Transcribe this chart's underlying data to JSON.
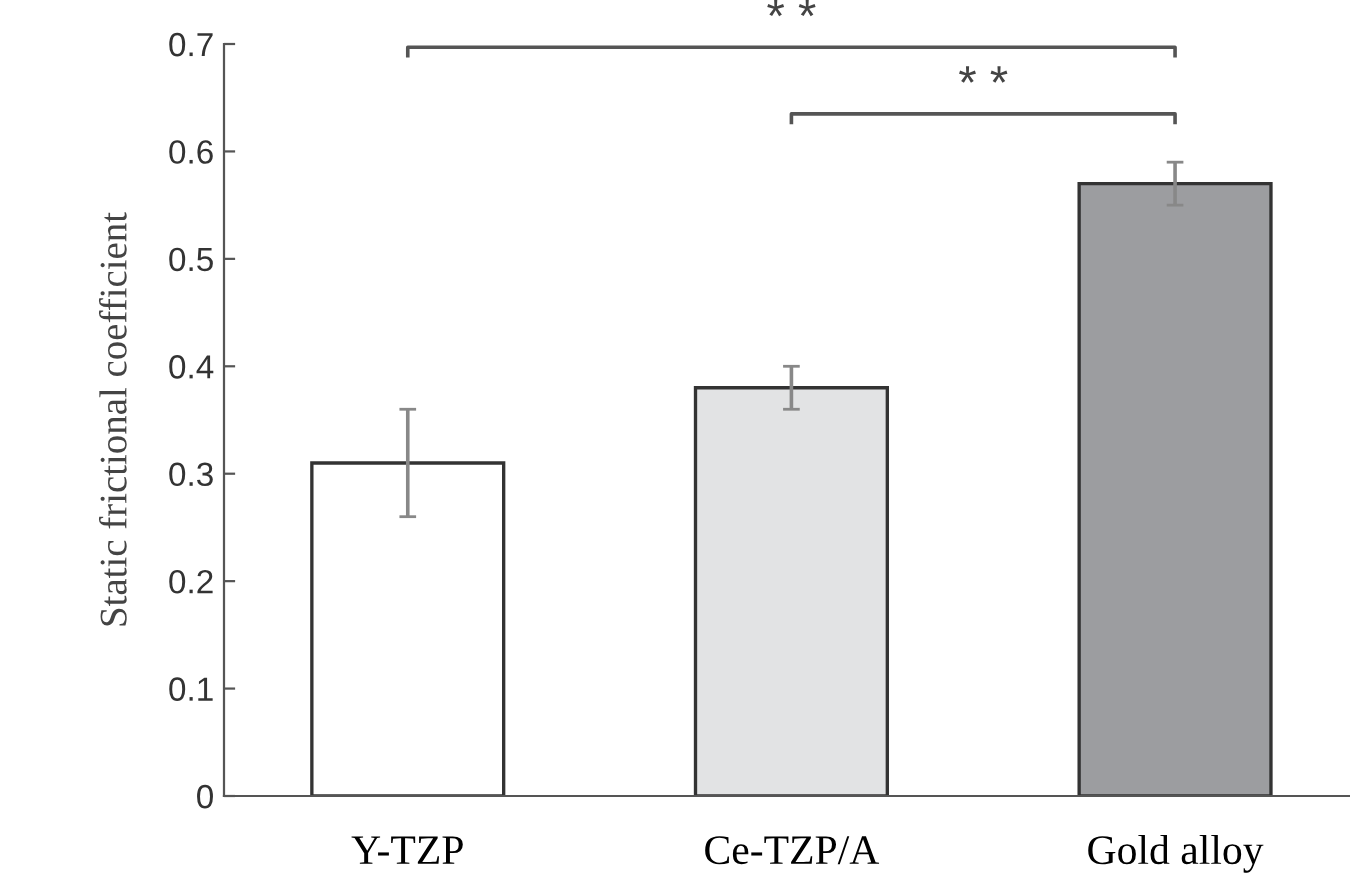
{
  "chart_data": {
    "type": "bar",
    "ylabel": "Static frictional coefficient",
    "categories": [
      "Y-TZP",
      "Ce-TZP/A",
      "Gold alloy"
    ],
    "values": [
      0.31,
      0.38,
      0.57
    ],
    "errors": [
      0.05,
      0.02,
      0.02
    ],
    "colors": [
      "#ffffff",
      "#e2e3e4",
      "#9c9da0"
    ],
    "ylim": [
      0,
      0.7
    ],
    "yticks": [
      0,
      0.1,
      0.2,
      0.3,
      0.4,
      0.5,
      0.6,
      0.7
    ],
    "grid": false,
    "annotations": [
      "* *",
      "* *"
    ]
  }
}
